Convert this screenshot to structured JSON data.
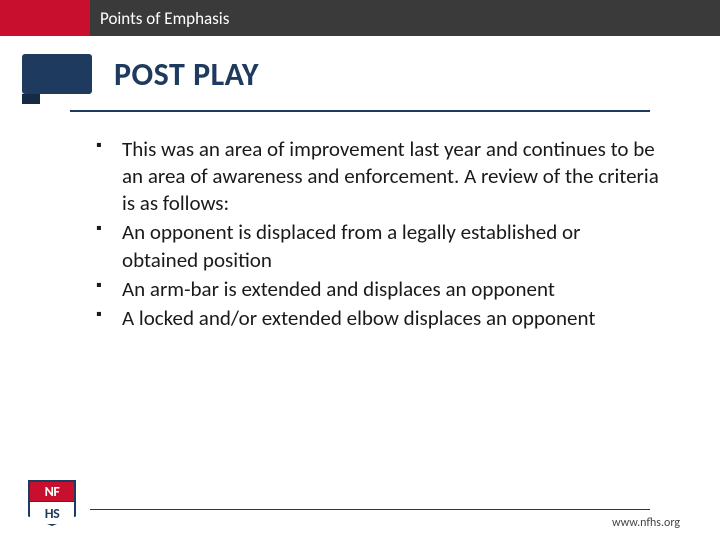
{
  "header": {
    "label": "Points of Emphasis",
    "bar_bg": "#3a3a3a",
    "accent_bg": "#c8102e",
    "text_color": "#ffffff"
  },
  "title": {
    "text": "POST PLAY",
    "color": "#1f3a5f",
    "badge_bg": "#1f3a5f"
  },
  "bullets": [
    "This was an area of improvement last year and continues to be an area of awareness and enforcement.  A review of the criteria is as follows:",
    "An opponent is displaced from a legally established or obtained position",
    "An arm-bar is extended and displaces an opponent",
    "A locked and/or extended elbow displaces an opponent"
  ],
  "footer": {
    "url": "www.nfhs.org"
  },
  "logo": {
    "top_text": "NF",
    "bottom_text": "HS"
  }
}
